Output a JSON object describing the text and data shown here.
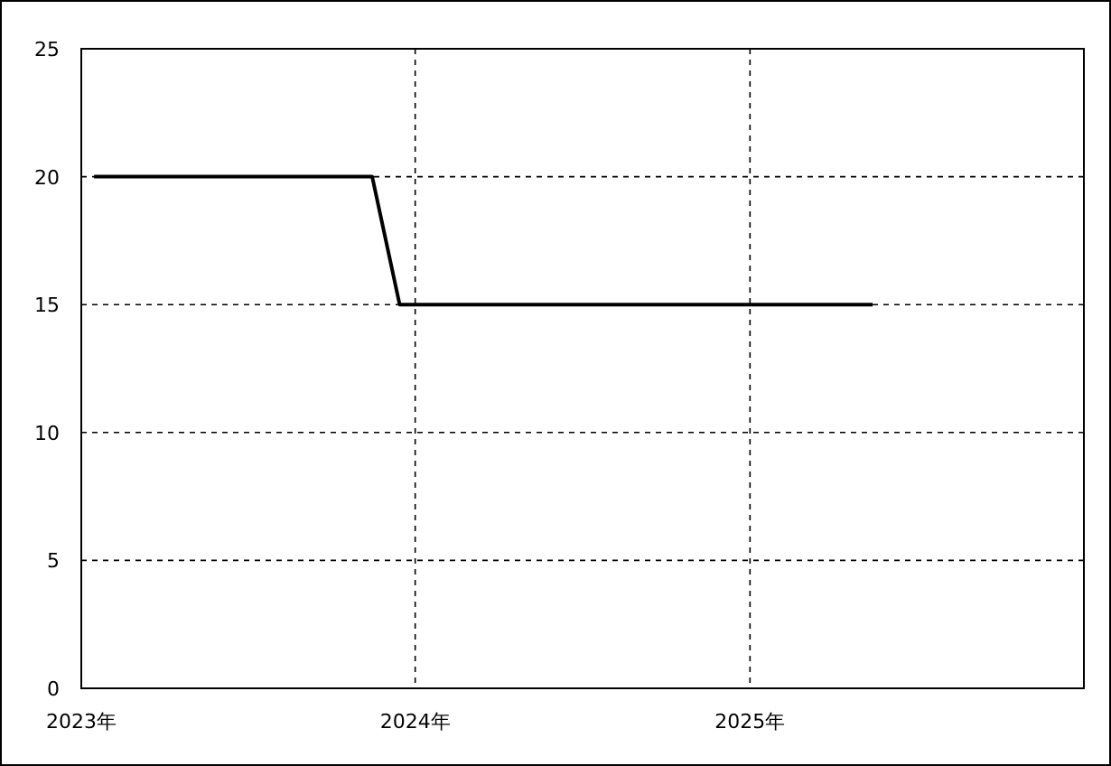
{
  "chart_data": {
    "type": "line",
    "x": [
      "2023-01-15",
      "2023-11-15",
      "2023-12-15",
      "2025-05-15"
    ],
    "series": [
      {
        "color": "#000000",
        "values": [
          20,
          20,
          15,
          15
        ]
      }
    ],
    "xlim": [
      "2023-01-01",
      "2026-01-01"
    ],
    "xticks": [
      {
        "value": "2023-01-01",
        "label": "2023年"
      },
      {
        "value": "2024-01-01",
        "label": "2024年"
      },
      {
        "value": "2025-01-01",
        "label": "2025年"
      }
    ],
    "ylim": [
      0,
      25
    ],
    "yticks": [
      0,
      5,
      10,
      15,
      20,
      25
    ],
    "grid": true,
    "marker": "none",
    "line_style": "solid"
  }
}
